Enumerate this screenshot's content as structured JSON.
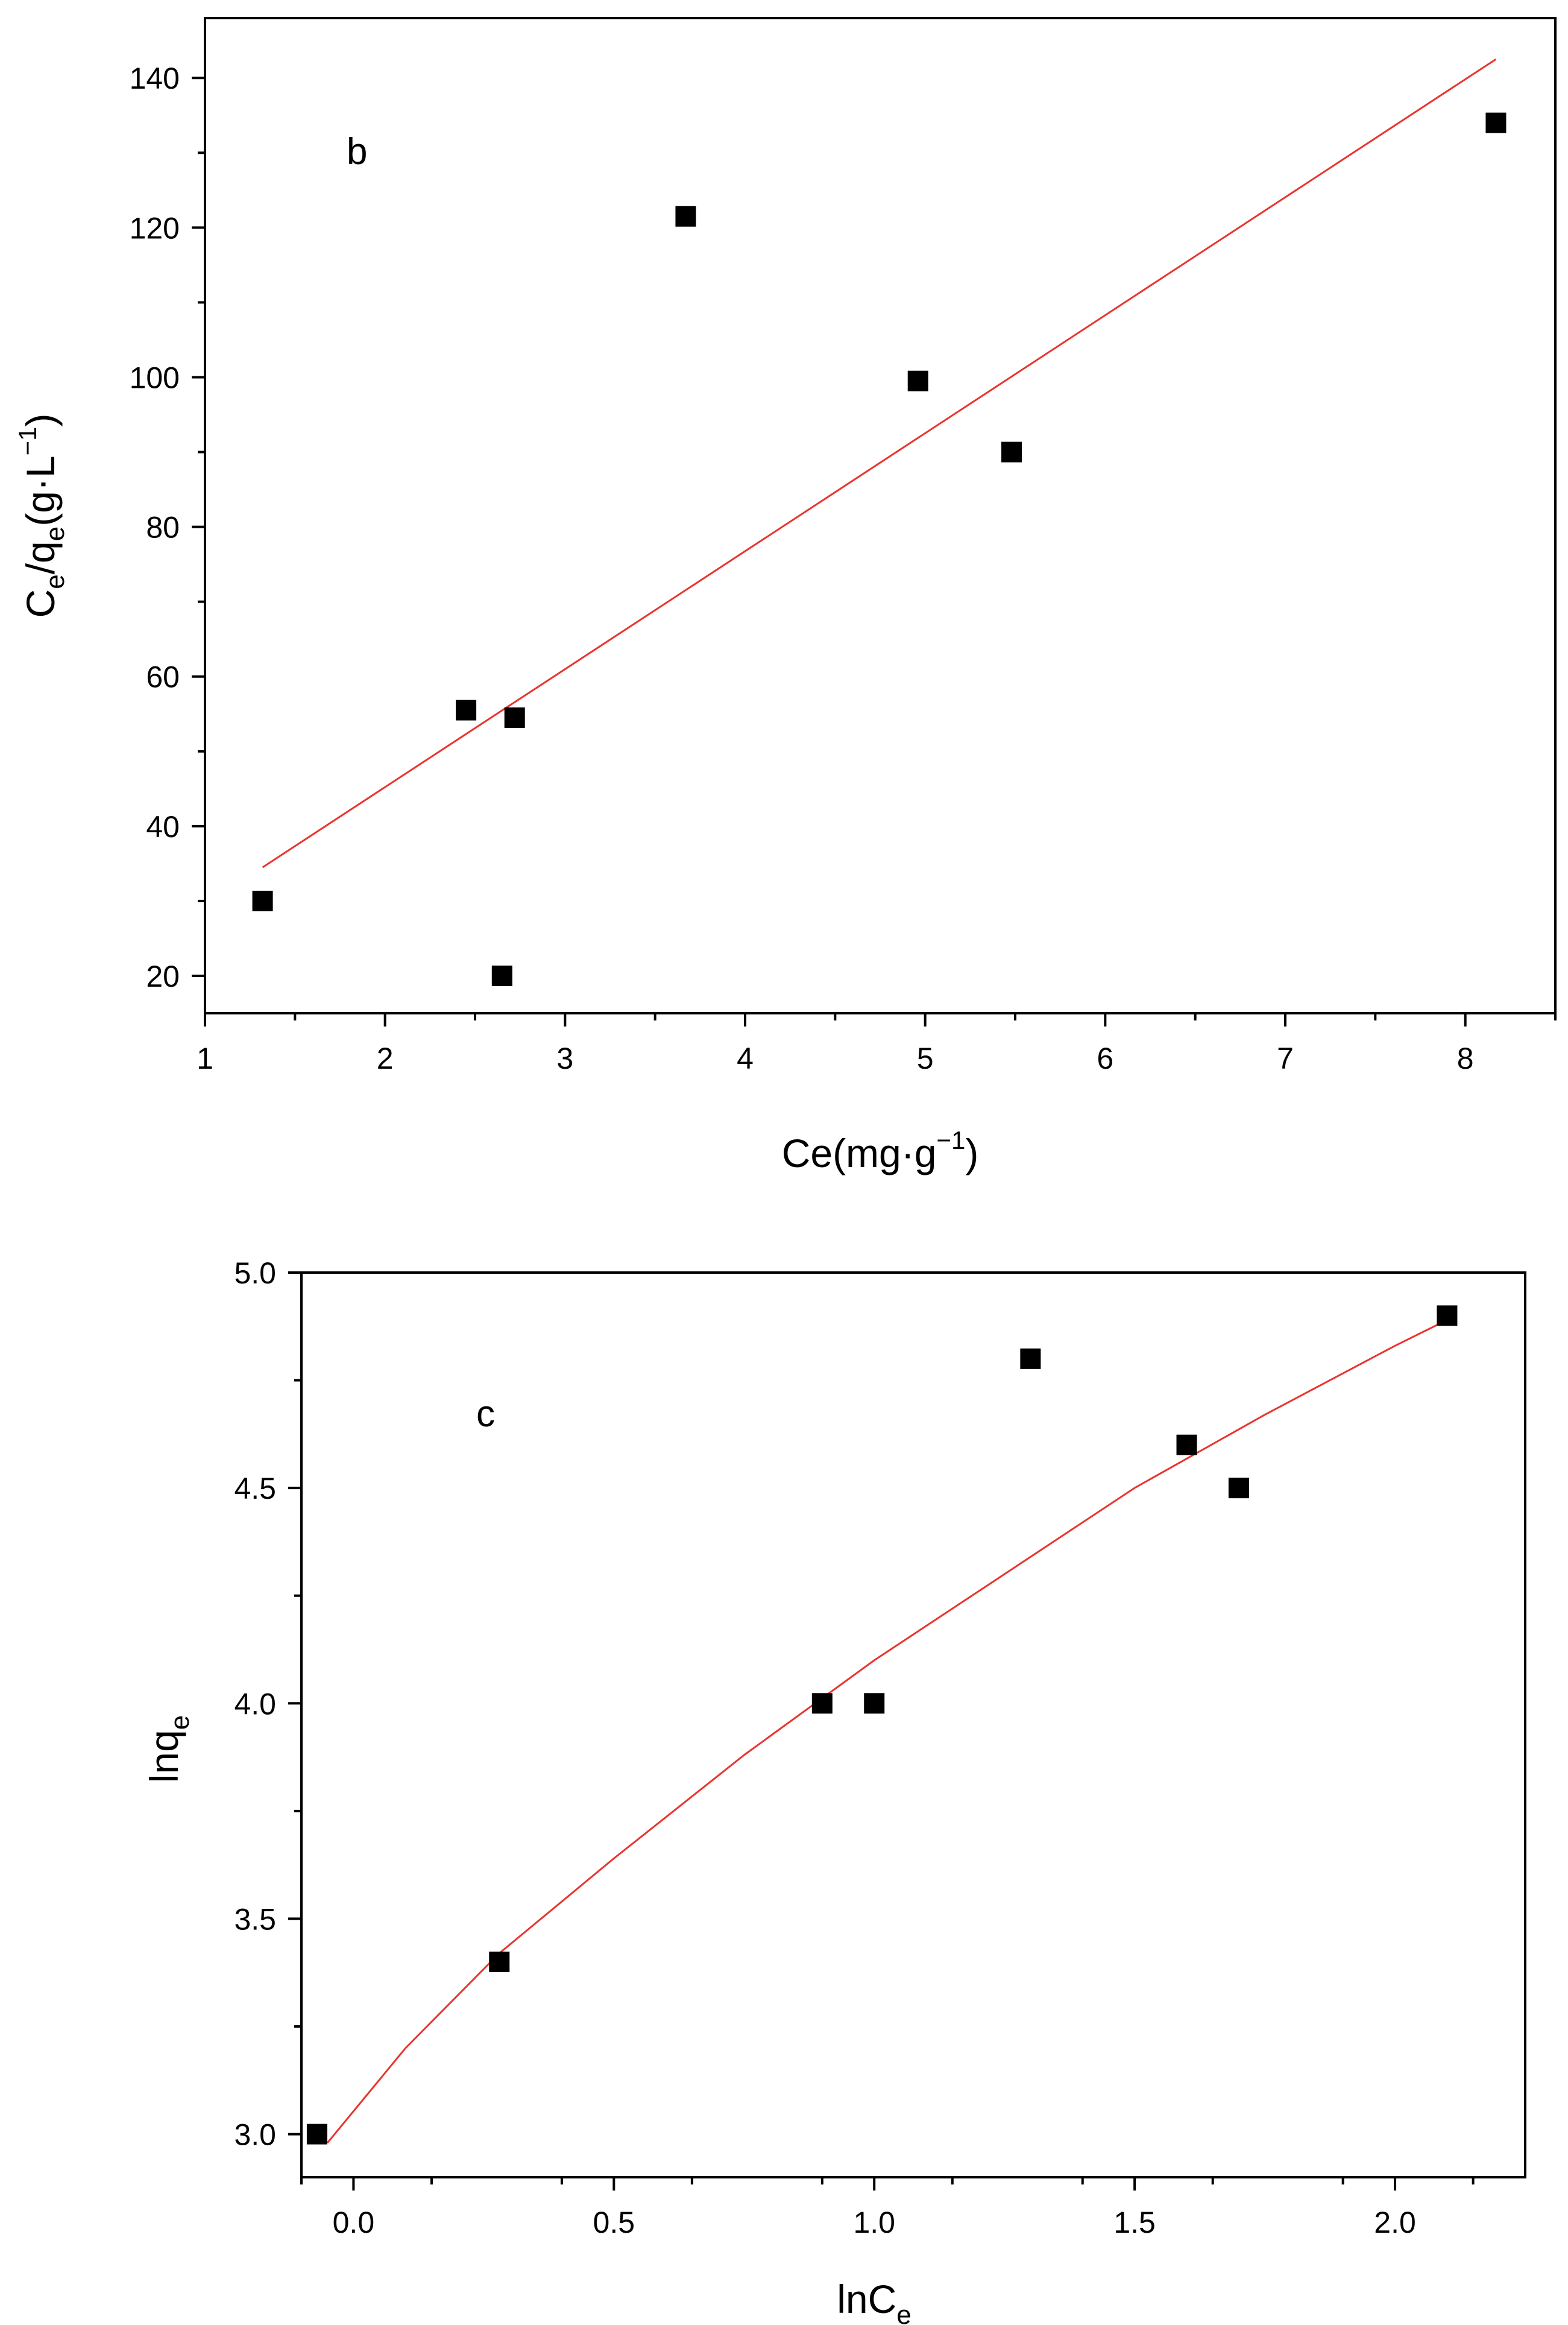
{
  "colors": {
    "axis": "#000000",
    "marker": "#000000",
    "fit_line": "#e8352f",
    "background": "#ffffff"
  },
  "chart_data": [
    {
      "type": "scatter",
      "panel_label": "b",
      "xlabel": {
        "main": "Ce(mg·g",
        "sup": "−1",
        "tail": ")"
      },
      "ylabel": {
        "c": "C",
        "c_sub": "e",
        "q": "/q",
        "q_sub": "e",
        "unit": "(g·L",
        "unit_sup": "−1",
        "tail": ")"
      },
      "xlim": [
        1,
        8.5
      ],
      "ylim": [
        15,
        148
      ],
      "x_major_ticks": [
        1,
        2,
        3,
        4,
        5,
        6,
        7,
        8
      ],
      "x_tick_labels": [
        "1",
        "2",
        "3",
        "4",
        "5",
        "6",
        "7",
        "8"
      ],
      "y_major_ticks": [
        20,
        40,
        60,
        80,
        100,
        120,
        140
      ],
      "y_tick_labels": [
        "20",
        "40",
        "60",
        "80",
        "100",
        "120",
        "140"
      ],
      "x_minor_step": 0.5,
      "y_minor_step": 10,
      "points": {
        "x": [
          1.32,
          2.45,
          2.72,
          2.65,
          3.67,
          4.96,
          5.48,
          8.17
        ],
        "y": [
          30,
          55.5,
          54.5,
          20,
          121.5,
          99.5,
          90,
          134
        ]
      },
      "fit": {
        "kind": "line",
        "x": [
          1.32,
          8.17
        ],
        "y": [
          34.5,
          142.5
        ]
      }
    },
    {
      "type": "scatter",
      "panel_label": "c",
      "xlabel": {
        "main": "lnC",
        "sub": "e"
      },
      "ylabel": {
        "main": "lnq",
        "sub": "e"
      },
      "xlim": [
        -0.1,
        2.25
      ],
      "ylim": [
        2.9,
        5.0
      ],
      "x_major_ticks": [
        0,
        0.5,
        1,
        1.5,
        2
      ],
      "x_tick_labels": [
        "0.0",
        "0.5",
        "1.0",
        "1.5",
        "2.0"
      ],
      "y_major_ticks": [
        3.0,
        3.5,
        4.0,
        4.5,
        5.0
      ],
      "y_tick_labels": [
        "3.0",
        "3.5",
        "4.0",
        "4.5",
        "5.0"
      ],
      "x_minor_step": 0.25,
      "y_minor_step": 0.25,
      "points": {
        "x": [
          -0.07,
          0.28,
          0.9,
          1.0,
          1.3,
          1.6,
          1.7,
          2.1
        ],
        "y": [
          3.0,
          3.4,
          4.0,
          4.0,
          4.8,
          4.6,
          4.5,
          4.9
        ]
      },
      "fit": {
        "kind": "curve",
        "x": [
          -0.05,
          0.1,
          0.28,
          0.5,
          0.75,
          1.0,
          1.25,
          1.5,
          1.75,
          2.0,
          2.1
        ],
        "y": [
          2.98,
          3.2,
          3.42,
          3.64,
          3.88,
          4.1,
          4.3,
          4.5,
          4.67,
          4.83,
          4.89
        ]
      }
    }
  ]
}
